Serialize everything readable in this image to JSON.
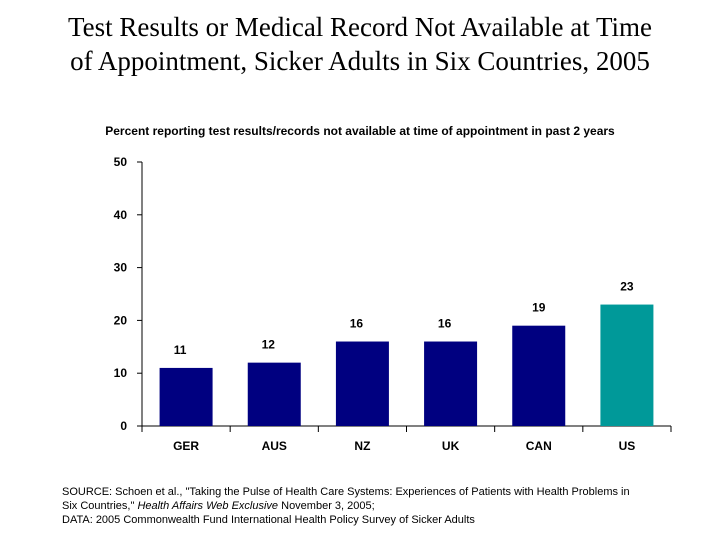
{
  "title_lines": [
    "Test Results or Medical Record Not Available at Time",
    "of Appointment, Sicker Adults in Six Countries, 2005"
  ],
  "source": {
    "line1": "SOURCE: Schoen et al., \"Taking the Pulse of Health Care Systems: Experiences of Patients with Health Problems in",
    "line2_pre": "Six Countries,\" ",
    "line2_italic": "Health Affairs Web Exclusive",
    "line2_post": " November 3, 2005;",
    "line3": "DATA: 2005 Commonwealth Fund International Health Policy Survey of Sicker Adults"
  },
  "colors": {
    "bar_default": "#000080",
    "bar_highlight": "#009999"
  },
  "chart_data": {
    "type": "bar",
    "title": "Percent reporting test results/records not available at time of appointment in past 2 years",
    "categories": [
      "GER",
      "AUS",
      "NZ",
      "UK",
      "CAN",
      "US"
    ],
    "values": [
      11,
      12,
      16,
      16,
      19,
      23
    ],
    "data_labels": [
      "11",
      "12",
      "16",
      "16",
      "19",
      "23"
    ],
    "highlight_category": "US",
    "ylim": [
      0,
      50
    ],
    "yticks": [
      0,
      10,
      20,
      30,
      40,
      50
    ],
    "ytick_labels": [
      "0",
      "10",
      "20",
      "30",
      "40",
      "50"
    ],
    "grid": false,
    "legend": "none"
  }
}
